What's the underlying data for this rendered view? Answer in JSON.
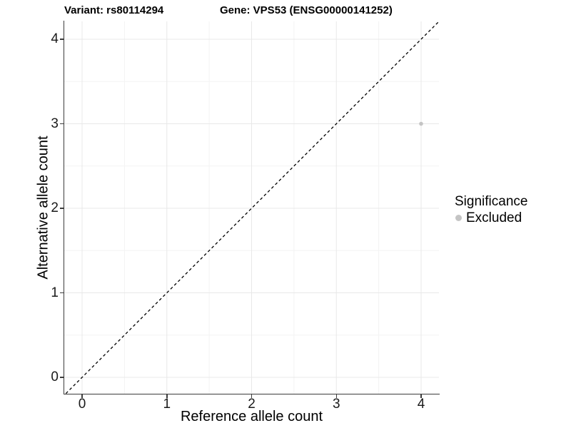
{
  "figure": {
    "titles": {
      "variant": "Variant: rs80114294",
      "gene": "Gene: VPS53 (ENSG00000141252)"
    }
  },
  "legend": {
    "title": "Significance",
    "items": [
      {
        "label": "Excluded",
        "color": "#c4c4c4"
      }
    ]
  },
  "chart_data": {
    "type": "scatter",
    "title_left": "Variant: rs80114294",
    "title_right": "Gene: VPS53 (ENSG00000141252)",
    "xlabel": "Reference allele count",
    "ylabel": "Alternative allele count",
    "x_ticks": [
      0,
      1,
      2,
      3,
      4
    ],
    "y_ticks": [
      0,
      1,
      2,
      3,
      4
    ],
    "xlim": [
      -0.21,
      4.21
    ],
    "ylim": [
      -0.2,
      4.21
    ],
    "grid": true,
    "minor_grid_step": 0.5,
    "legend_position": "right",
    "series": [
      {
        "name": "Excluded",
        "color": "#c4c4c4",
        "points": [
          {
            "x": 4,
            "y": 3
          }
        ]
      }
    ],
    "reference_line": {
      "kind": "identity",
      "equation": "y = x",
      "style": "dashed",
      "color": "#000000"
    },
    "colors": {
      "major_grid": "#e8e8e8",
      "minor_grid": "#f3f3f3",
      "axis_line": "#3c3c3c",
      "point_excluded": "#c4c4c4"
    }
  }
}
